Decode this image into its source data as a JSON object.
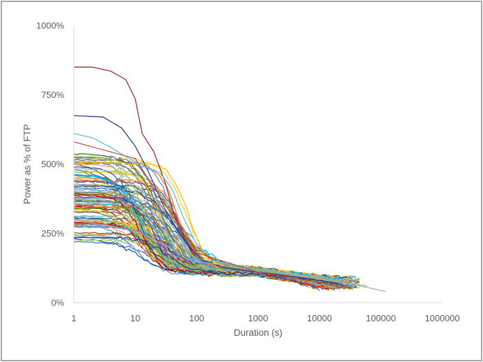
{
  "chart_data": {
    "type": "line",
    "title": "",
    "xlabel": "Duration (s)",
    "ylabel": "Power as % of FTP",
    "x_scale": "log",
    "xlim": [
      1,
      1000000
    ],
    "ylim": [
      0,
      1000
    ],
    "grid": false,
    "legend": "none",
    "x_ticks": [
      {
        "value": 1,
        "label": "1"
      },
      {
        "value": 10,
        "label": "10"
      },
      {
        "value": 100,
        "label": "100"
      },
      {
        "value": 1000,
        "label": "1000"
      },
      {
        "value": 10000,
        "label": "10000"
      },
      {
        "value": 100000,
        "label": "100000"
      },
      {
        "value": 1000000,
        "label": "1000000"
      }
    ],
    "y_ticks": [
      {
        "value": 0,
        "label": "0%"
      },
      {
        "value": 250,
        "label": "250%"
      },
      {
        "value": 500,
        "label": "500%"
      },
      {
        "value": 750,
        "label": "750%"
      },
      {
        "value": 1000,
        "label": "1000%"
      }
    ],
    "colors": [
      "#4472c4",
      "#ed7d31",
      "#a5a5a5",
      "#ffc000",
      "#5b9bd5",
      "#70ad47",
      "#264478",
      "#9e480e",
      "#636363",
      "#997300",
      "#255e91",
      "#43682b",
      "#698ed0",
      "#f1975a",
      "#b7b7b7",
      "#ffcd33",
      "#7cafdd",
      "#8cc168",
      "#7030a0",
      "#c00000",
      "#00b0f0",
      "#92d050"
    ],
    "highlight_series": [
      {
        "color": "#9e2a2b",
        "x": [
          1,
          2,
          4,
          7,
          10,
          13,
          20,
          30,
          45,
          60,
          80,
          100,
          150,
          300,
          1000,
          3000,
          10000,
          25000
        ],
        "y": [
          850,
          850,
          835,
          805,
          735,
          610,
          545,
          440,
          305,
          240,
          185,
          160,
          145,
          125,
          110,
          100,
          85,
          70
        ]
      },
      {
        "color": "#2e3a87",
        "x": [
          1,
          3,
          6,
          10,
          15,
          20,
          30,
          50,
          80,
          120,
          300,
          1000,
          5000,
          20000
        ],
        "y": [
          675,
          670,
          630,
          565,
          490,
          430,
          340,
          255,
          195,
          155,
          125,
          110,
          90,
          70
        ]
      },
      {
        "color": "#5bc0de",
        "x": [
          1,
          2,
          4,
          8,
          15,
          25,
          40,
          60,
          100,
          200,
          1000,
          5000,
          20000
        ],
        "y": [
          610,
          595,
          560,
          520,
          490,
          470,
          410,
          310,
          210,
          150,
          120,
          100,
          75
        ]
      },
      {
        "color": "#b3a2c7",
        "x": [
          1,
          10,
          100,
          1000,
          10000,
          60000,
          120000
        ],
        "y": [
          300,
          260,
          150,
          115,
          85,
          55,
          40
        ]
      },
      {
        "color": "#9bbb59",
        "x": [
          1,
          10,
          100,
          1000,
          10000,
          60000
        ],
        "y": [
          380,
          320,
          160,
          115,
          90,
          60
        ]
      },
      {
        "color": "#c0504d",
        "x": [
          1,
          10,
          100,
          1000,
          30000
        ],
        "y": [
          580,
          520,
          180,
          110,
          55
        ]
      }
    ],
    "bundle": {
      "count": 95,
      "note": "many athlete power-duration curves starting 220%-540% at 1 s and converging near 100-120% at 1000 s"
    }
  }
}
